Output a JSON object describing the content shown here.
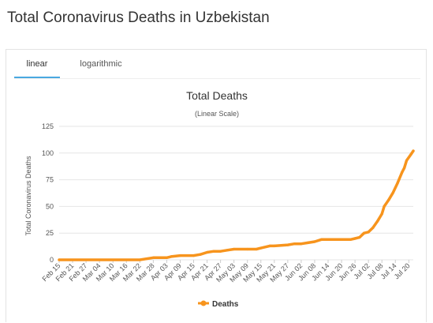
{
  "page": {
    "title": "Total Coronavirus Deaths in Uzbekistan"
  },
  "tabs": [
    {
      "label": "linear",
      "active": true
    },
    {
      "label": "logarithmic",
      "active": false
    }
  ],
  "colors": {
    "series": "#f7941d",
    "grid": "#e6e6e6",
    "tab_active": "#4aa8e0"
  },
  "chart_data": {
    "type": "line",
    "title": "Total Deaths",
    "subtitle": "(Linear Scale)",
    "ylabel": "Total Coronavirus Deaths",
    "xlabel": "",
    "ylim": [
      0,
      125
    ],
    "yticks": [
      0,
      25,
      50,
      75,
      100,
      125
    ],
    "x_tick_labels": [
      "Feb 15",
      "Feb 21",
      "Feb 27",
      "Mar 04",
      "Mar 10",
      "Mar 16",
      "Mar 22",
      "Mar 28",
      "Apr 03",
      "Apr 09",
      "Apr 15",
      "Apr 21",
      "Apr 27",
      "May 03",
      "May 09",
      "May 15",
      "May 21",
      "May 27",
      "Jun 02",
      "Jun 08",
      "Jun 14",
      "Jun 20",
      "Jun 26",
      "Jul 02",
      "Jul 08",
      "Jul 14",
      "Jul 20"
    ],
    "grid": true,
    "legend": "bottom-center",
    "series": [
      {
        "name": "Deaths",
        "color": "#f7941d",
        "points": [
          [
            "Feb 15",
            0
          ],
          [
            "Mar 22",
            0
          ],
          [
            "Mar 28",
            2
          ],
          [
            "Apr 03",
            2
          ],
          [
            "Apr 05",
            3
          ],
          [
            "Apr 09",
            4
          ],
          [
            "Apr 15",
            4
          ],
          [
            "Apr 18",
            5
          ],
          [
            "Apr 21",
            7
          ],
          [
            "Apr 24",
            8
          ],
          [
            "Apr 27",
            8
          ],
          [
            "Apr 30",
            9
          ],
          [
            "May 03",
            10
          ],
          [
            "May 09",
            10
          ],
          [
            "May 13",
            10
          ],
          [
            "May 15",
            11
          ],
          [
            "May 19",
            13
          ],
          [
            "May 21",
            13
          ],
          [
            "May 27",
            14
          ],
          [
            "May 30",
            15
          ],
          [
            "Jun 02",
            15
          ],
          [
            "Jun 05",
            16
          ],
          [
            "Jun 08",
            17
          ],
          [
            "Jun 11",
            19
          ],
          [
            "Jun 14",
            19
          ],
          [
            "Jun 20",
            19
          ],
          [
            "Jun 24",
            19
          ],
          [
            "Jun 26",
            20
          ],
          [
            "Jun 28",
            21
          ],
          [
            "Jun 30",
            25
          ],
          [
            "Jul 02",
            26
          ],
          [
            "Jul 04",
            30
          ],
          [
            "Jul 06",
            36
          ],
          [
            "Jul 08",
            43
          ],
          [
            "Jul 09",
            50
          ],
          [
            "Jul 11",
            56
          ],
          [
            "Jul 13",
            63
          ],
          [
            "Jul 15",
            72
          ],
          [
            "Jul 17",
            82
          ],
          [
            "Jul 18",
            86
          ],
          [
            "Jul 19",
            93
          ],
          [
            "Jul 21",
            99
          ],
          [
            "Jul 22",
            102
          ]
        ]
      }
    ]
  }
}
